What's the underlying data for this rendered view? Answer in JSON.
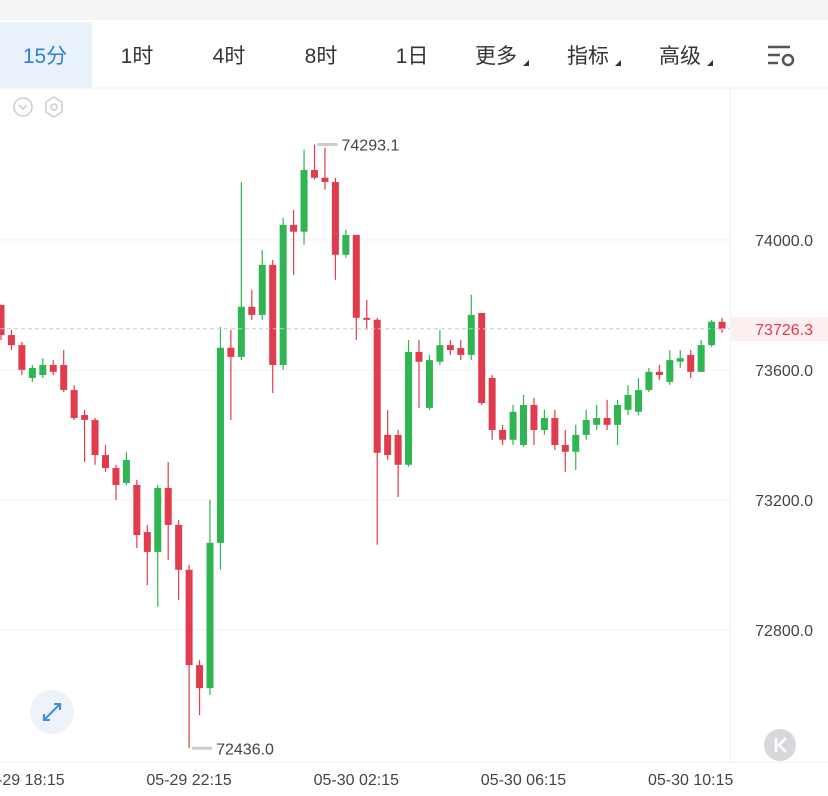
{
  "toolbar": {
    "tabs": [
      "15分",
      "1时",
      "4时",
      "8时",
      "1日",
      "更多",
      "指标",
      "高级"
    ],
    "selected": 0,
    "menus": [
      5,
      6,
      7
    ]
  },
  "chart_data": {
    "type": "candlestick",
    "categories": [
      null,
      null,
      "05-29 18:15",
      null,
      null,
      null,
      null,
      null,
      null,
      null,
      null,
      null,
      null,
      null,
      null,
      null,
      null,
      null,
      "05-29 22:15",
      null,
      null,
      null,
      null,
      null,
      null,
      null,
      null,
      null,
      null,
      null,
      null,
      null,
      null,
      null,
      "05-30 02:15",
      null,
      null,
      null,
      null,
      null,
      null,
      null,
      null,
      null,
      null,
      null,
      null,
      null,
      null,
      null,
      "05-30 06:15",
      null,
      null,
      null,
      null,
      null,
      null,
      null,
      null,
      null,
      null,
      null,
      null,
      null,
      null,
      null,
      "05-30 10:15",
      null,
      null,
      null
    ],
    "open": [
      73800,
      73707,
      73676,
      73575,
      73584,
      73615,
      73615,
      73538,
      73461,
      73446,
      73338,
      73298,
      73252,
      73246,
      73101,
      73040,
      73237,
      73123,
      72985,
      72692,
      72621,
      73068,
      73668,
      73640,
      73794,
      73769,
      73923,
      73615,
      74046,
      74025,
      74215,
      74191,
      74178,
      73954,
      74015,
      73760,
      73754,
      73400,
      73400,
      73308,
      73655,
      73483,
      73625,
      73676,
      73667,
      73646,
      73775,
      73575,
      73415,
      73385,
      73369,
      73492,
      73415,
      73452,
      73369,
      73348,
      73400,
      73431,
      73452,
      73431,
      73477,
      73471,
      73538,
      73594,
      73563,
      73625,
      73646,
      73594,
      73676,
      73748
    ],
    "high": [
      73800,
      73723,
      73686,
      73615,
      73636,
      73630,
      73661,
      73553,
      73477,
      73452,
      73369,
      73308,
      73348,
      73262,
      73123,
      73246,
      73317,
      73138,
      73000,
      72707,
      73200,
      73732,
      73723,
      74178,
      73846,
      73969,
      73938,
      74068,
      74092,
      74277,
      74293.1,
      74283,
      74191,
      74031,
      74015,
      73815,
      73760,
      73477,
      73415,
      73692,
      73692,
      73646,
      73723,
      73692,
      73692,
      73831,
      73775,
      73584,
      73431,
      73492,
      73523,
      73514,
      73477,
      73477,
      73415,
      73431,
      73477,
      73492,
      73508,
      73508,
      73553,
      73575,
      73606,
      73615,
      73661,
      73661,
      73661,
      73692,
      73754,
      73760
    ],
    "low": [
      73692,
      73661,
      73584,
      73563,
      73575,
      73584,
      73532,
      73446,
      73317,
      73308,
      73286,
      73200,
      73246,
      73052,
      72938,
      72871,
      73015,
      72892,
      72436,
      72538,
      72600,
      72985,
      73446,
      73630,
      73754,
      73754,
      73529,
      73600,
      73892,
      73985,
      74185,
      74154,
      73877,
      73945,
      73692,
      73723,
      73062,
      73323,
      73209,
      73302,
      73483,
      73477,
      73615,
      73646,
      73630,
      73630,
      73492,
      73385,
      73369,
      73369,
      73363,
      73369,
      73400,
      73354,
      73286,
      73292,
      73385,
      73415,
      73415,
      73369,
      73461,
      73461,
      73532,
      73569,
      73554,
      73606,
      73575,
      73594,
      73671,
      73714
    ],
    "close": [
      73707,
      73676,
      73600,
      73606,
      73615,
      73594,
      73538,
      73452,
      73446,
      73338,
      73298,
      73246,
      73323,
      73092,
      73040,
      73237,
      73123,
      72985,
      72692,
      72621,
      73068,
      73668,
      73640,
      73794,
      73769,
      73923,
      73615,
      74046,
      74025,
      74215,
      74191,
      74178,
      73954,
      74015,
      73760,
      73754,
      73345,
      73338,
      73308,
      73655,
      73625,
      73630,
      73676,
      73661,
      73646,
      73769,
      73498,
      73415,
      73385,
      73471,
      73492,
      73415,
      73452,
      73369,
      73348,
      73400,
      73446,
      73452,
      73431,
      73492,
      73523,
      73538,
      73594,
      73584,
      73630,
      73636,
      73594,
      73676,
      73748,
      73726.3
    ],
    "up_color": "#2fb551",
    "down_color": "#e03c4d",
    "ylim": [
      72400,
      74467
    ],
    "yticks": [
      {
        "value": 74000,
        "label": "74000.0"
      },
      {
        "value": 73600,
        "label": "73600.0"
      },
      {
        "value": 73200,
        "label": "73200.0"
      },
      {
        "value": 72800,
        "label": "72800.0"
      }
    ],
    "grid": true,
    "annotations": {
      "max": "74293.1",
      "min": "72436.0",
      "last": "73726.3"
    }
  }
}
